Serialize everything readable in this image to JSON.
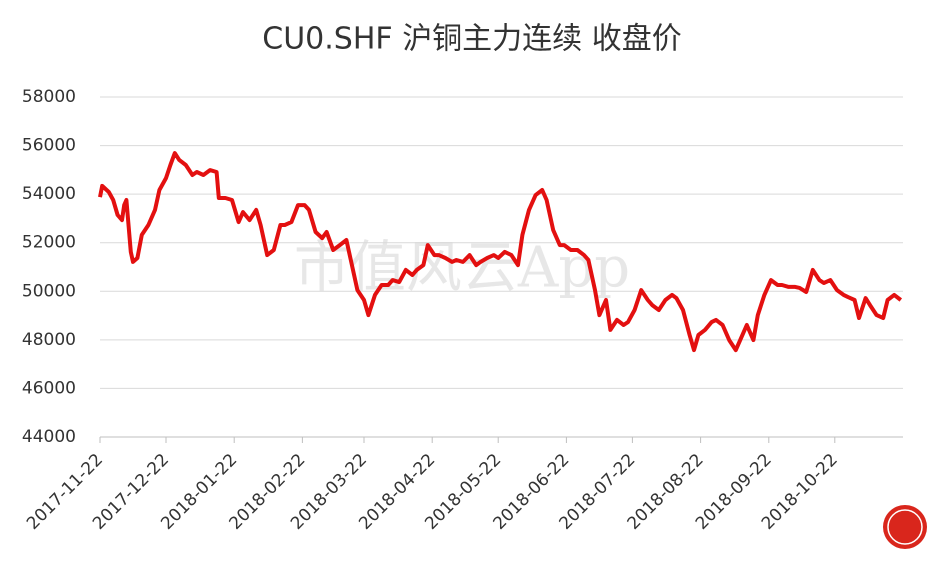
{
  "chart_data": {
    "type": "line",
    "title": "CU0.SHF 沪铜主力连续 收盘价",
    "watermark": "市值风云App",
    "x": [
      "2017-11-22",
      "2017-11-23",
      "2017-11-26",
      "2017-11-28",
      "2017-11-30",
      "2017-12-02",
      "2017-12-03",
      "2017-12-04",
      "2017-12-06",
      "2017-12-07",
      "2017-12-09",
      "2017-12-11",
      "2017-12-14",
      "2017-12-17",
      "2017-12-19",
      "2017-12-22",
      "2017-12-24",
      "2017-12-26",
      "2017-12-28",
      "2017-12-31",
      "2018-01-03",
      "2018-01-05",
      "2018-01-08",
      "2018-01-11",
      "2018-01-14",
      "2018-01-15",
      "2018-01-18",
      "2018-01-21",
      "2018-01-24",
      "2018-01-26",
      "2018-01-29",
      "2018-02-01",
      "2018-02-03",
      "2018-02-06",
      "2018-02-09",
      "2018-02-12",
      "2018-02-14",
      "2018-02-17",
      "2018-02-20",
      "2018-02-23",
      "2018-02-25",
      "2018-02-28",
      "2018-03-03",
      "2018-03-05",
      "2018-03-08",
      "2018-03-11",
      "2018-03-14",
      "2018-03-16",
      "2018-03-19",
      "2018-03-22",
      "2018-03-24",
      "2018-03-27",
      "2018-03-30",
      "2018-04-02",
      "2018-04-04",
      "2018-04-07",
      "2018-04-10",
      "2018-04-13",
      "2018-04-15",
      "2018-04-18",
      "2018-04-20",
      "2018-04-23",
      "2018-04-25",
      "2018-04-28",
      "2018-05-01",
      "2018-05-03",
      "2018-05-06",
      "2018-05-09",
      "2018-05-12",
      "2018-05-14",
      "2018-05-17",
      "2018-05-20",
      "2018-05-22",
      "2018-05-25",
      "2018-05-28",
      "2018-05-31",
      "2018-06-02",
      "2018-06-05",
      "2018-06-08",
      "2018-06-11",
      "2018-06-13",
      "2018-06-16",
      "2018-06-19",
      "2018-06-21",
      "2018-06-24",
      "2018-06-27",
      "2018-06-30",
      "2018-07-02",
      "2018-07-05",
      "2018-07-07",
      "2018-07-10",
      "2018-07-12",
      "2018-07-15",
      "2018-07-18",
      "2018-07-20",
      "2018-07-23",
      "2018-07-26",
      "2018-07-29",
      "2018-07-31",
      "2018-08-03",
      "2018-08-06",
      "2018-08-09",
      "2018-08-11",
      "2018-08-14",
      "2018-08-17",
      "2018-08-19",
      "2018-08-21",
      "2018-08-24",
      "2018-08-27",
      "2018-08-29",
      "2018-09-01",
      "2018-09-04",
      "2018-09-07",
      "2018-09-09",
      "2018-09-12",
      "2018-09-15",
      "2018-09-17",
      "2018-09-20",
      "2018-09-23",
      "2018-09-26",
      "2018-09-28",
      "2018-10-01",
      "2018-10-04",
      "2018-10-06",
      "2018-10-09",
      "2018-10-12",
      "2018-10-15",
      "2018-10-17",
      "2018-10-20",
      "2018-10-23",
      "2018-10-26",
      "2018-10-28",
      "2018-10-31",
      "2018-11-02",
      "2018-11-05",
      "2018-11-07",
      "2018-11-10",
      "2018-11-13",
      "2018-11-15",
      "2018-11-18",
      "2018-11-21"
    ],
    "series": [
      {
        "name": "收盘价",
        "color": "#e31010",
        "values": [
          53880,
          54340,
          54090,
          53760,
          53140,
          52930,
          53550,
          53760,
          51620,
          51210,
          51370,
          52320,
          52730,
          53350,
          54170,
          54660,
          55200,
          55690,
          55410,
          55200,
          54790,
          54910,
          54790,
          54990,
          54910,
          53840,
          53840,
          53760,
          52850,
          53260,
          52930,
          53350,
          52730,
          51490,
          51700,
          52730,
          52730,
          52850,
          53550,
          53550,
          53350,
          52440,
          52190,
          52440,
          51700,
          51900,
          52110,
          51290,
          50050,
          49640,
          49020,
          49850,
          50260,
          50260,
          50460,
          50380,
          50880,
          50670,
          50880,
          51080,
          51900,
          51490,
          51490,
          51370,
          51210,
          51290,
          51210,
          51490,
          51080,
          51210,
          51370,
          51490,
          51370,
          51620,
          51490,
          51080,
          52320,
          53350,
          53960,
          54170,
          53760,
          52520,
          51900,
          51900,
          51700,
          51700,
          51490,
          51290,
          50050,
          49020,
          49640,
          48410,
          48820,
          48610,
          48730,
          49230,
          50050,
          49640,
          49430,
          49230,
          49640,
          49850,
          49720,
          49230,
          48200,
          47580,
          48200,
          48410,
          48730,
          48820,
          48610,
          47990,
          47580,
          47990,
          48610,
          47990,
          49020,
          49850,
          50460,
          50260,
          50260,
          50180,
          50180,
          50140,
          49970,
          50880,
          50460,
          50340,
          50460,
          50050,
          49850,
          49760,
          49640,
          48900,
          49720,
          49430,
          49020,
          48900,
          49640,
          49850,
          49640
        ]
      }
    ],
    "xlim": [
      "2017-11-22",
      "2018-11-22"
    ],
    "xticks": [
      "2017-11-22",
      "2017-12-22",
      "2018-01-22",
      "2018-02-22",
      "2018-03-22",
      "2018-04-22",
      "2018-05-22",
      "2018-06-22",
      "2018-07-22",
      "2018-08-22",
      "2018-09-22",
      "2018-10-22"
    ],
    "ylim": [
      44000,
      58000
    ],
    "yticks": [
      44000,
      46000,
      48000,
      50000,
      52000,
      54000,
      56000,
      58000
    ],
    "grid": true
  }
}
